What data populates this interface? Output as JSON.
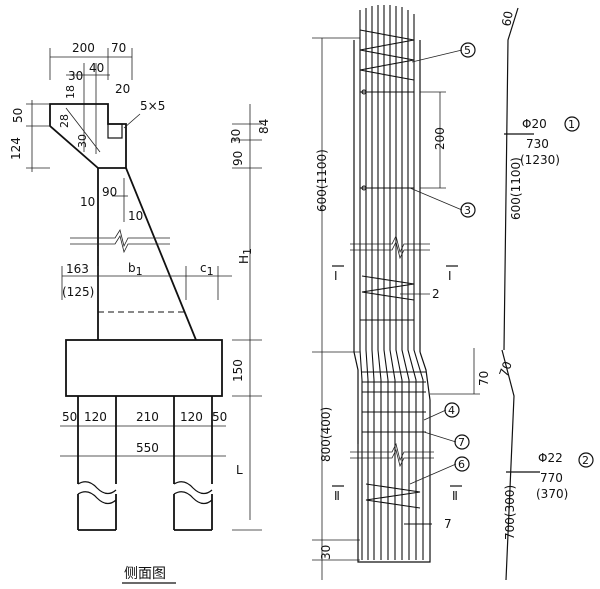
{
  "side_view": {
    "caption": "侧面图",
    "dims": {
      "d200": "200",
      "d70": "70",
      "d30": "30",
      "d40": "40",
      "d20": "20",
      "d5x5": "5×5",
      "d50": "50",
      "d18": "18",
      "d28": "28",
      "d30b": "30",
      "d124": "124",
      "d30r": "30",
      "d84": "84",
      "d90r": "90",
      "d90": "90",
      "d10a": "10",
      "d10b": "10",
      "H1": "H",
      "H1sub": "1",
      "d163": "163",
      "d125": "(125)",
      "b1": "b",
      "b1sub": "1",
      "c1": "c",
      "c1sub": "1",
      "d150": "150",
      "p50a": "50",
      "p120a": "120",
      "p210": "210",
      "p120b": "120",
      "p50b": "50",
      "d550": "550",
      "L": "L"
    }
  },
  "rebar_view": {
    "dims": {
      "d600": "600(1100)",
      "d800": "800(400)",
      "d30": "30",
      "d200": "200",
      "d70": "70",
      "sec1a": "Ⅰ",
      "sec1b": "Ⅰ",
      "sec2a": "Ⅱ",
      "sec2b": "Ⅱ"
    },
    "callouts": {
      "c5": "5",
      "c3": "3",
      "c2": "2",
      "c4": "4",
      "c7a": "7",
      "c6": "6",
      "c7b": "7"
    }
  },
  "bar_schedule": {
    "top_dim": "60",
    "bar1": {
      "dia": "Φ20",
      "len": "730",
      "len_alt": "(1230)",
      "mark": "1",
      "seg": "600(1100)"
    },
    "mid_dim": "70",
    "bar2": {
      "dia": "Φ22",
      "len": "770",
      "len_alt": "(370)",
      "mark": "2",
      "seg": "700(300)"
    }
  }
}
